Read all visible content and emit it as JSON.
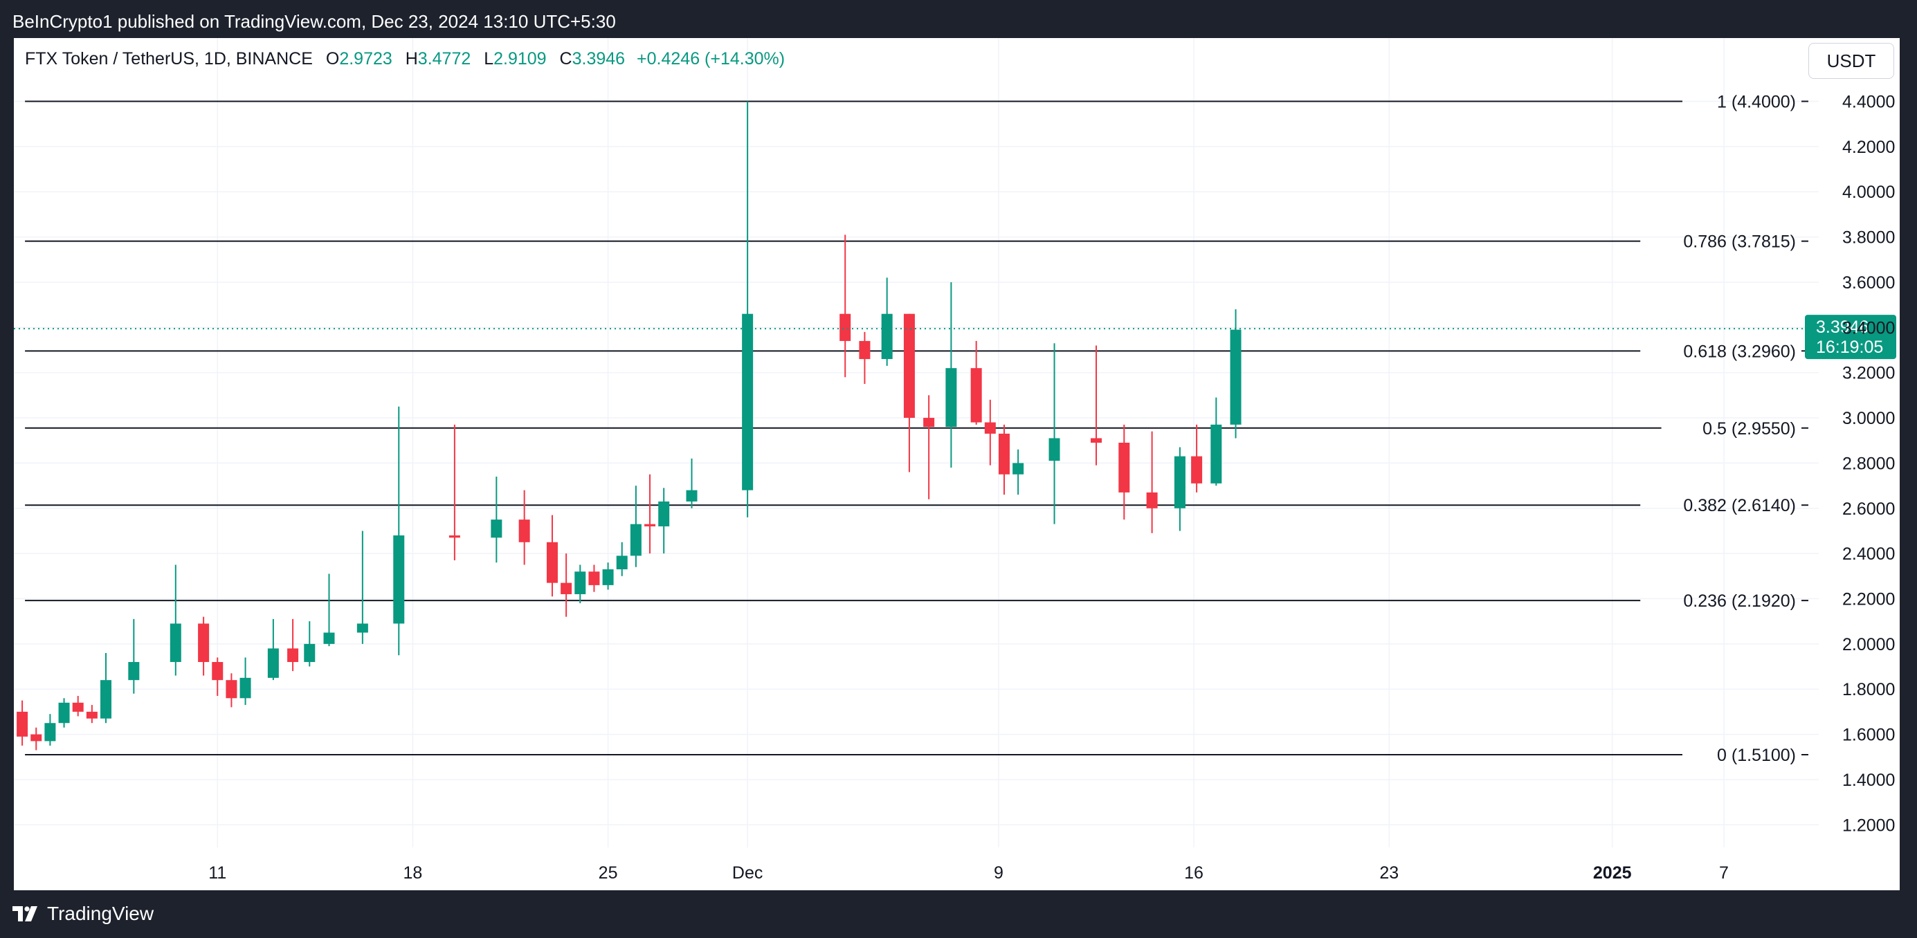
{
  "caption": "BeInCrypto1 published on TradingView.com, Dec 23, 2024 13:10 UTC+5:30",
  "legend": {
    "symbol": "FTX Token / TetherUS, 1D, BINANCE",
    "open_label": "O",
    "open": "2.9723",
    "high_label": "H",
    "high": "3.4772",
    "low_label": "L",
    "low": "2.9109",
    "close_label": "C",
    "close": "3.3946",
    "change": "+0.4246 (+14.30%)"
  },
  "currency_button": "USDT",
  "footer_brand": "TradingView",
  "colors": {
    "up": "#089981",
    "down": "#f23645",
    "grid": "#f0f3fa",
    "fib_line": "#131722",
    "background": "#ffffff",
    "frame": "#1e222d"
  },
  "chart_data": {
    "type": "candlestick",
    "title": "FTX Token / TetherUS, 1D, BINANCE",
    "ylim": [
      1.1,
      4.68
    ],
    "y_ticks": [
      "1.2000",
      "1.4000",
      "1.6000",
      "1.8000",
      "2.0000",
      "2.2000",
      "2.4000",
      "2.6000",
      "2.8000",
      "3.0000",
      "3.2000",
      "3.4000",
      "3.6000",
      "3.8000",
      "4.0000",
      "4.2000",
      "4.4000"
    ],
    "x_ticks": [
      {
        "label": "11",
        "day": 11,
        "bold": false
      },
      {
        "label": "18",
        "day": 18,
        "bold": false
      },
      {
        "label": "25",
        "day": 25,
        "bold": false
      },
      {
        "label": "Dec",
        "day": 30,
        "bold": false
      },
      {
        "label": "9",
        "day": 39,
        "bold": false
      },
      {
        "label": "16",
        "day": 46,
        "bold": false
      },
      {
        "label": "23",
        "day": 53,
        "bold": false
      },
      {
        "label": "2025",
        "day": 61,
        "bold": true
      },
      {
        "label": "7",
        "day": 65,
        "bold": false
      }
    ],
    "x_day_range": [
      3.7,
      68.4
    ],
    "fib_levels": [
      {
        "label": "1 (4.4000)",
        "value": 4.4
      },
      {
        "label": "0.786 (3.7815)",
        "value": 3.7815
      },
      {
        "label": "0.618 (3.2960)",
        "value": 3.296
      },
      {
        "label": "0.5 (2.9550)",
        "value": 2.955
      },
      {
        "label": "0.382 (2.6140)",
        "value": 2.614
      },
      {
        "label": "0.236 (2.1920)",
        "value": 2.192
      },
      {
        "label": "0 (1.5100)",
        "value": 1.51
      }
    ],
    "last_price": {
      "value": 3.3946,
      "label": "3.3946",
      "countdown": "16:19:05"
    },
    "candles": [
      {
        "day": 4,
        "o": 1.7,
        "h": 1.75,
        "l": 1.55,
        "c": 1.59
      },
      {
        "day": 4.5,
        "o": 1.6,
        "h": 1.63,
        "l": 1.53,
        "c": 1.57
      },
      {
        "day": 5,
        "o": 1.57,
        "h": 1.69,
        "l": 1.55,
        "c": 1.65
      },
      {
        "day": 5.5,
        "o": 1.65,
        "h": 1.76,
        "l": 1.63,
        "c": 1.74
      },
      {
        "day": 6,
        "o": 1.74,
        "h": 1.77,
        "l": 1.68,
        "c": 1.7
      },
      {
        "day": 6.5,
        "o": 1.7,
        "h": 1.73,
        "l": 1.65,
        "c": 1.67
      },
      {
        "day": 7,
        "o": 1.67,
        "h": 1.96,
        "l": 1.65,
        "c": 1.84
      },
      {
        "day": 8,
        "o": 1.84,
        "h": 2.11,
        "l": 1.78,
        "c": 1.92
      },
      {
        "day": 9.5,
        "o": 1.92,
        "h": 2.35,
        "l": 1.86,
        "c": 2.09
      },
      {
        "day": 10.5,
        "o": 2.09,
        "h": 2.12,
        "l": 1.86,
        "c": 1.92
      },
      {
        "day": 11,
        "o": 1.92,
        "h": 1.94,
        "l": 1.77,
        "c": 1.84
      },
      {
        "day": 11.5,
        "o": 1.84,
        "h": 1.87,
        "l": 1.72,
        "c": 1.76
      },
      {
        "day": 12,
        "o": 1.76,
        "h": 1.94,
        "l": 1.73,
        "c": 1.85
      },
      {
        "day": 13,
        "o": 1.85,
        "h": 2.11,
        "l": 1.84,
        "c": 1.98
      },
      {
        "day": 13.7,
        "o": 1.98,
        "h": 2.11,
        "l": 1.88,
        "c": 1.92
      },
      {
        "day": 14.3,
        "o": 1.92,
        "h": 2.1,
        "l": 1.9,
        "c": 2.0
      },
      {
        "day": 15,
        "o": 2.0,
        "h": 2.31,
        "l": 1.99,
        "c": 2.05
      },
      {
        "day": 16.2,
        "o": 2.05,
        "h": 2.5,
        "l": 2.0,
        "c": 2.09
      },
      {
        "day": 17.5,
        "o": 2.09,
        "h": 3.05,
        "l": 1.95,
        "c": 2.48
      },
      {
        "day": 19.5,
        "o": 2.48,
        "h": 2.97,
        "l": 2.37,
        "c": 2.47
      },
      {
        "day": 21,
        "o": 2.47,
        "h": 2.74,
        "l": 2.36,
        "c": 2.55
      },
      {
        "day": 22,
        "o": 2.55,
        "h": 2.68,
        "l": 2.35,
        "c": 2.45
      },
      {
        "day": 23,
        "o": 2.45,
        "h": 2.57,
        "l": 2.21,
        "c": 2.27
      },
      {
        "day": 23.5,
        "o": 2.27,
        "h": 2.4,
        "l": 2.12,
        "c": 2.22
      },
      {
        "day": 24,
        "o": 2.22,
        "h": 2.35,
        "l": 2.18,
        "c": 2.32
      },
      {
        "day": 24.5,
        "o": 2.32,
        "h": 2.35,
        "l": 2.23,
        "c": 2.26
      },
      {
        "day": 25,
        "o": 2.26,
        "h": 2.36,
        "l": 2.24,
        "c": 2.33
      },
      {
        "day": 25.5,
        "o": 2.33,
        "h": 2.45,
        "l": 2.3,
        "c": 2.39
      },
      {
        "day": 26,
        "o": 2.39,
        "h": 2.7,
        "l": 2.34,
        "c": 2.53
      },
      {
        "day": 26.5,
        "o": 2.53,
        "h": 2.75,
        "l": 2.4,
        "c": 2.52
      },
      {
        "day": 27,
        "o": 2.52,
        "h": 2.69,
        "l": 2.4,
        "c": 2.63
      },
      {
        "day": 28,
        "o": 2.63,
        "h": 2.82,
        "l": 2.6,
        "c": 2.68
      },
      {
        "day": 30,
        "o": 2.68,
        "h": 4.4,
        "l": 2.56,
        "c": 3.46
      },
      {
        "day": 33.5,
        "o": 3.46,
        "h": 3.81,
        "l": 3.18,
        "c": 3.34
      },
      {
        "day": 34.2,
        "o": 3.34,
        "h": 3.38,
        "l": 3.15,
        "c": 3.26
      },
      {
        "day": 35,
        "o": 3.26,
        "h": 3.62,
        "l": 3.23,
        "c": 3.46
      },
      {
        "day": 35.8,
        "o": 3.46,
        "h": 3.46,
        "l": 2.76,
        "c": 3.0
      },
      {
        "day": 36.5,
        "o": 3.0,
        "h": 3.1,
        "l": 2.64,
        "c": 2.96
      },
      {
        "day": 37.3,
        "o": 2.96,
        "h": 3.6,
        "l": 2.78,
        "c": 3.22
      },
      {
        "day": 38.2,
        "o": 3.22,
        "h": 3.34,
        "l": 2.97,
        "c": 2.98
      },
      {
        "day": 38.7,
        "o": 2.98,
        "h": 3.08,
        "l": 2.79,
        "c": 2.93
      },
      {
        "day": 39.2,
        "o": 2.93,
        "h": 2.97,
        "l": 2.66,
        "c": 2.75
      },
      {
        "day": 39.7,
        "o": 2.75,
        "h": 2.86,
        "l": 2.66,
        "c": 2.8
      },
      {
        "day": 41,
        "o": 2.81,
        "h": 3.33,
        "l": 2.53,
        "c": 2.91
      },
      {
        "day": 42.5,
        "o": 2.91,
        "h": 3.32,
        "l": 2.79,
        "c": 2.89
      },
      {
        "day": 43.5,
        "o": 2.89,
        "h": 2.97,
        "l": 2.55,
        "c": 2.67
      },
      {
        "day": 44.5,
        "o": 2.67,
        "h": 2.94,
        "l": 2.49,
        "c": 2.6
      },
      {
        "day": 45.5,
        "o": 2.6,
        "h": 2.87,
        "l": 2.5,
        "c": 2.83
      },
      {
        "day": 46.1,
        "o": 2.83,
        "h": 2.97,
        "l": 2.67,
        "c": 2.71
      },
      {
        "day": 46.8,
        "o": 2.71,
        "h": 3.09,
        "l": 2.7,
        "c": 2.97
      },
      {
        "day": 47.5,
        "o": 2.97,
        "h": 3.48,
        "l": 2.91,
        "c": 3.39
      }
    ]
  }
}
